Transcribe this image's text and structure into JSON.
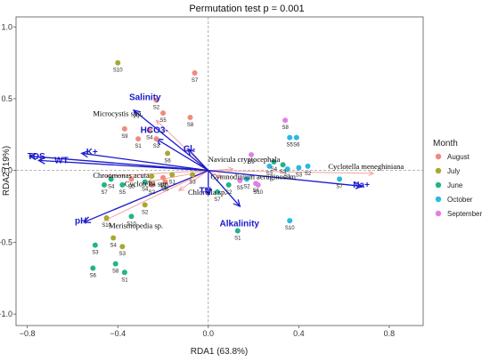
{
  "chart_data": {
    "type": "scatter",
    "title": "Permutation test p = 0.001",
    "xlabel": "RDA1 (63.8%)",
    "ylabel": "RDA2 (19%)",
    "xlim": [
      -0.85,
      0.95
    ],
    "ylim": [
      -1.08,
      1.07
    ],
    "xticks": [
      {
        "v": -0.8,
        "label": "−0.8"
      },
      {
        "v": -0.4,
        "label": "−0.4"
      },
      {
        "v": 0.0,
        "label": "0.0"
      },
      {
        "v": 0.4,
        "label": "0.4"
      },
      {
        "v": 0.8,
        "label": "0.8"
      }
    ],
    "yticks": [
      {
        "v": -1.0,
        "label": "−1.0"
      },
      {
        "v": -0.5,
        "label": "−0.5"
      },
      {
        "v": 0.0,
        "label": "0.0"
      },
      {
        "v": 0.5,
        "label": "0.5"
      },
      {
        "v": 1.0,
        "label": "1.0"
      }
    ],
    "grid": false,
    "legend": {
      "title": "Month",
      "position": "right",
      "entries": [
        {
          "name": "August",
          "color": "#F08A80"
        },
        {
          "name": "July",
          "color": "#A8A830"
        },
        {
          "name": "June",
          "color": "#22B38A"
        },
        {
          "name": "October",
          "color": "#29B9E6"
        },
        {
          "name": "September",
          "color": "#E27FE5"
        }
      ]
    },
    "series": [
      {
        "name": "August",
        "color": "#F08A80",
        "points": [
          {
            "x": -0.06,
            "y": 0.68,
            "label": "S7"
          },
          {
            "x": -0.23,
            "y": 0.49,
            "label": "S2"
          },
          {
            "x": -0.2,
            "y": 0.4,
            "label": "S5"
          },
          {
            "x": -0.08,
            "y": 0.37,
            "label": "S8"
          },
          {
            "x": -0.37,
            "y": 0.29,
            "label": "S9"
          },
          {
            "x": -0.26,
            "y": 0.28,
            "label": "S4"
          },
          {
            "x": -0.31,
            "y": 0.22,
            "label": "S1"
          },
          {
            "x": -0.23,
            "y": 0.22,
            "label": "S3"
          },
          {
            "x": -0.25,
            "y": -0.1,
            "label": "S2"
          },
          {
            "x": -0.34,
            "y": -0.06,
            "label": "S5"
          },
          {
            "x": -0.19,
            "y": -0.08,
            "label": "S6"
          },
          {
            "x": -0.2,
            "y": -0.05,
            "label": "S2"
          }
        ]
      },
      {
        "name": "July",
        "color": "#A8A830",
        "points": [
          {
            "x": -0.4,
            "y": 0.75,
            "label": "S10"
          },
          {
            "x": -0.18,
            "y": 0.12,
            "label": "S6"
          },
          {
            "x": -0.28,
            "y": -0.24,
            "label": "S2"
          },
          {
            "x": -0.16,
            "y": -0.03,
            "label": "S1"
          },
          {
            "x": -0.45,
            "y": -0.33,
            "label": "S10"
          },
          {
            "x": -0.42,
            "y": -0.47,
            "label": "S4"
          },
          {
            "x": -0.38,
            "y": -0.53,
            "label": "S3"
          },
          {
            "x": -0.07,
            "y": -0.03,
            "label": "S3"
          },
          {
            "x": -0.25,
            "y": -0.04,
            "label": "S2"
          }
        ]
      },
      {
        "name": "June",
        "color": "#22B38A",
        "points": [
          {
            "x": -0.5,
            "y": -0.52,
            "label": "S3"
          },
          {
            "x": -0.51,
            "y": -0.68,
            "label": "S6"
          },
          {
            "x": -0.41,
            "y": -0.65,
            "label": "S8"
          },
          {
            "x": -0.37,
            "y": -0.71,
            "label": "S1"
          },
          {
            "x": -0.34,
            "y": -0.32,
            "label": "S10"
          },
          {
            "x": -0.43,
            "y": -0.06,
            "label": "S4"
          },
          {
            "x": -0.38,
            "y": -0.1,
            "label": "S5"
          },
          {
            "x": -0.46,
            "y": -0.1,
            "label": "S7"
          },
          {
            "x": -0.28,
            "y": -0.08,
            "label": "S4"
          },
          {
            "x": 0.04,
            "y": -0.15,
            "label": "S7"
          },
          {
            "x": 0.09,
            "y": -0.1,
            "label": "S2"
          },
          {
            "x": 0.13,
            "y": -0.42,
            "label": "S1"
          },
          {
            "x": 0.29,
            "y": 0.06,
            "label": "S4"
          },
          {
            "x": 0.33,
            "y": 0.04,
            "label": "S3"
          }
        ]
      },
      {
        "name": "October",
        "color": "#29B9E6",
        "points": [
          {
            "x": 0.36,
            "y": 0.23,
            "label": "S5"
          },
          {
            "x": 0.39,
            "y": 0.23,
            "label": "S6"
          },
          {
            "x": 0.27,
            "y": 0.03,
            "label": "S3"
          },
          {
            "x": 0.35,
            "y": 0.01,
            "label": "S1"
          },
          {
            "x": 0.4,
            "y": 0.02,
            "label": "S3"
          },
          {
            "x": 0.58,
            "y": -0.06,
            "label": "S7"
          },
          {
            "x": 0.36,
            "y": -0.35,
            "label": "S10"
          },
          {
            "x": 0.44,
            "y": 0.03,
            "label": "S2"
          },
          {
            "x": 0.17,
            "y": -0.06,
            "label": "S2"
          }
        ]
      },
      {
        "name": "September",
        "color": "#E27FE5",
        "points": [
          {
            "x": 0.34,
            "y": 0.35,
            "label": "S8"
          },
          {
            "x": 0.19,
            "y": 0.11,
            "label": "S9"
          },
          {
            "x": 0.21,
            "y": -0.09,
            "label": "S6"
          },
          {
            "x": 0.22,
            "y": -0.1,
            "label": "S10"
          },
          {
            "x": 0.14,
            "y": -0.07,
            "label": "S5"
          }
        ]
      }
    ],
    "env_vectors": [
      {
        "name": "TDS",
        "x": -0.79,
        "y": 0.1,
        "lx": -0.8,
        "ly": 0.08
      },
      {
        "name": "WT",
        "x": -0.75,
        "y": 0.07,
        "lx": -0.68,
        "ly": 0.05
      },
      {
        "name": "K+",
        "x": -0.56,
        "y": 0.12,
        "lx": -0.54,
        "ly": 0.11
      },
      {
        "name": "Salinity",
        "x": -0.33,
        "y": 0.42,
        "lx": -0.35,
        "ly": 0.49
      },
      {
        "name": "HCO3-",
        "x": -0.23,
        "y": 0.22,
        "lx": -0.3,
        "ly": 0.26
      },
      {
        "name": "Cl-",
        "x": -0.09,
        "y": 0.15,
        "lx": -0.11,
        "ly": 0.13
      },
      {
        "name": "pH",
        "x": -0.55,
        "y": -0.36,
        "lx": -0.59,
        "ly": -0.37
      },
      {
        "name": "TN",
        "x": 0.0,
        "y": -0.17,
        "lx": -0.04,
        "ly": -0.16
      },
      {
        "name": "Alkalinity",
        "x": 0.14,
        "y": -0.25,
        "lx": 0.05,
        "ly": -0.39
      },
      {
        "name": "Na+",
        "x": 0.68,
        "y": -0.11,
        "lx": 0.64,
        "ly": -0.12
      }
    ],
    "species_vectors": [
      {
        "name": "Microcystis spp.",
        "x": -0.23,
        "y": 0.35,
        "lx": -0.51,
        "ly": 0.38
      },
      {
        "name": "Chroomonas acuta",
        "x": -0.45,
        "y": -0.04,
        "lx": -0.51,
        "ly": -0.05
      },
      {
        "name": "Cyclotella spp.",
        "x": -0.27,
        "y": -0.08,
        "lx": -0.37,
        "ly": -0.11
      },
      {
        "name": "Chlorella sp.",
        "x": -0.13,
        "y": -0.14,
        "lx": -0.09,
        "ly": -0.17
      },
      {
        "name": "Merismopedia sp.",
        "x": -0.46,
        "y": -0.35,
        "lx": -0.44,
        "ly": -0.4
      },
      {
        "name": "Navicula cryptocephala",
        "x": 0.11,
        "y": 0.01,
        "lx": 0.0,
        "ly": 0.06
      },
      {
        "name": "Gymnodinium aeruginosum",
        "x": 0.06,
        "y": -0.05,
        "lx": 0.01,
        "ly": -0.06
      },
      {
        "name": "Cyclotella meneghiniana",
        "x": 0.73,
        "y": -0.02,
        "lx": 0.53,
        "ly": 0.01
      }
    ]
  }
}
